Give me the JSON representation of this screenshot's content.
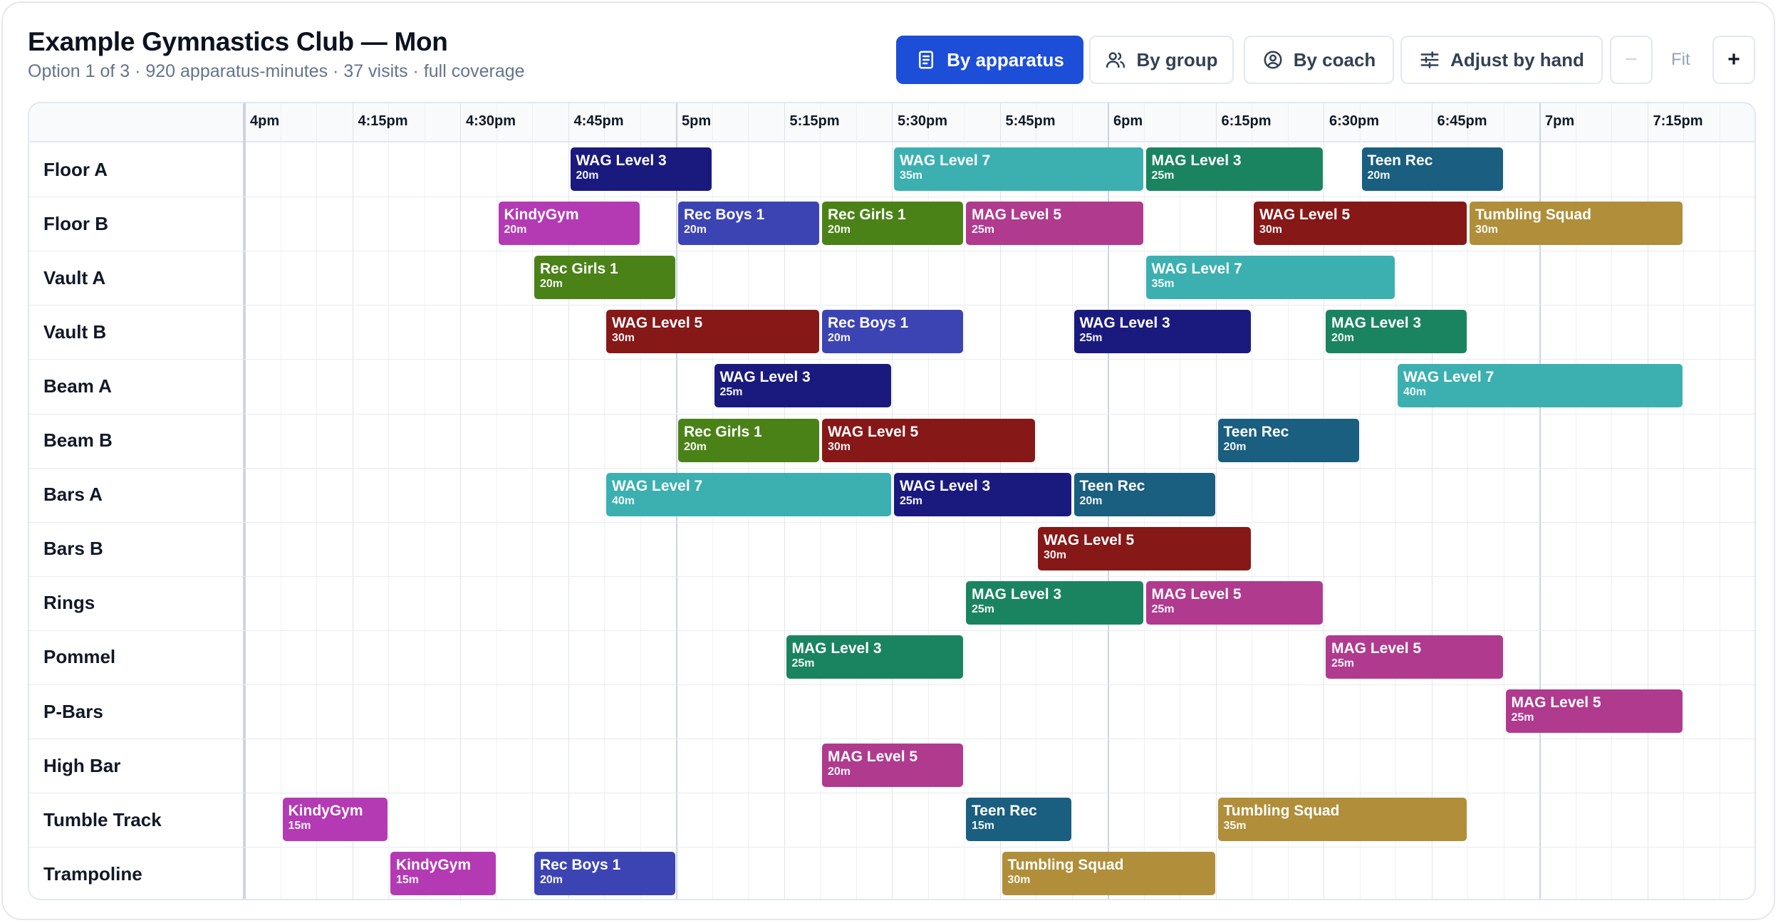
{
  "header": {
    "title": "Example Gymnastics Club — Mon",
    "subtitle": "Option 1 of 3 · 920 apparatus-minutes · 37 visits · full coverage"
  },
  "toolbar": {
    "by_apparatus": "By apparatus",
    "by_group": "By group",
    "by_coach": "By coach",
    "adjust": "Adjust by hand",
    "zoom_out": "−",
    "fit": "Fit",
    "zoom_in": "+"
  },
  "timeline": {
    "start": "4:00pm",
    "end": "7:25pm",
    "ticks": [
      {
        "label": "4pm",
        "min": 0
      },
      {
        "label": "4:15pm",
        "min": 15
      },
      {
        "label": "4:30pm",
        "min": 30
      },
      {
        "label": "4:45pm",
        "min": 45
      },
      {
        "label": "5pm",
        "min": 60
      },
      {
        "label": "5:15pm",
        "min": 75
      },
      {
        "label": "5:30pm",
        "min": 90
      },
      {
        "label": "5:45pm",
        "min": 105
      },
      {
        "label": "6pm",
        "min": 120
      },
      {
        "label": "6:15pm",
        "min": 135
      },
      {
        "label": "6:30pm",
        "min": 150
      },
      {
        "label": "6:45pm",
        "min": 165
      },
      {
        "label": "7pm",
        "min": 180
      },
      {
        "label": "7:15pm",
        "min": 195
      }
    ]
  },
  "groups": {
    "WAG Level 3": "#1a1a7e",
    "WAG Level 5": "#861818",
    "WAG Level 7": "#3cb0b0",
    "MAG Level 3": "#1a8460",
    "MAG Level 5": "#b03a8e",
    "Teen Rec": "#1a5e80",
    "KindyGym": "#b43ab4",
    "Rec Boys 1": "#3c44b4",
    "Rec Girls 1": "#4b8218",
    "Tumbling Squad": "#b08e3a"
  },
  "rows": [
    {
      "name": "Floor A",
      "sessions": [
        {
          "group": "WAG Level 3",
          "duration": "20m",
          "start": 45,
          "len": 20
        },
        {
          "group": "WAG Level 7",
          "duration": "35m",
          "start": 90,
          "len": 35
        },
        {
          "group": "MAG Level 3",
          "duration": "25m",
          "start": 125,
          "len": 25
        },
        {
          "group": "Teen Rec",
          "duration": "20m",
          "start": 155,
          "len": 20
        }
      ]
    },
    {
      "name": "Floor B",
      "sessions": [
        {
          "group": "KindyGym",
          "duration": "20m",
          "start": 35,
          "len": 20
        },
        {
          "group": "Rec Boys 1",
          "duration": "20m",
          "start": 60,
          "len": 20
        },
        {
          "group": "Rec Girls 1",
          "duration": "20m",
          "start": 80,
          "len": 20
        },
        {
          "group": "MAG Level 5",
          "duration": "25m",
          "start": 100,
          "len": 25
        },
        {
          "group": "WAG Level 5",
          "duration": "30m",
          "start": 140,
          "len": 30
        },
        {
          "group": "Tumbling Squad",
          "duration": "30m",
          "start": 170,
          "len": 30
        }
      ]
    },
    {
      "name": "Vault A",
      "sessions": [
        {
          "group": "Rec Girls 1",
          "duration": "20m",
          "start": 40,
          "len": 20
        },
        {
          "group": "WAG Level 7",
          "duration": "35m",
          "start": 125,
          "len": 35
        }
      ]
    },
    {
      "name": "Vault B",
      "sessions": [
        {
          "group": "WAG Level 5",
          "duration": "30m",
          "start": 50,
          "len": 30
        },
        {
          "group": "Rec Boys 1",
          "duration": "20m",
          "start": 80,
          "len": 20
        },
        {
          "group": "WAG Level 3",
          "duration": "25m",
          "start": 115,
          "len": 25
        },
        {
          "group": "MAG Level 3",
          "duration": "20m",
          "start": 150,
          "len": 20
        }
      ]
    },
    {
      "name": "Beam A",
      "sessions": [
        {
          "group": "WAG Level 3",
          "duration": "25m",
          "start": 65,
          "len": 25
        },
        {
          "group": "WAG Level 7",
          "duration": "40m",
          "start": 160,
          "len": 40
        }
      ]
    },
    {
      "name": "Beam B",
      "sessions": [
        {
          "group": "Rec Girls 1",
          "duration": "20m",
          "start": 60,
          "len": 20
        },
        {
          "group": "WAG Level 5",
          "duration": "30m",
          "start": 80,
          "len": 30
        },
        {
          "group": "Teen Rec",
          "duration": "20m",
          "start": 135,
          "len": 20
        }
      ]
    },
    {
      "name": "Bars A",
      "sessions": [
        {
          "group": "WAG Level 7",
          "duration": "40m",
          "start": 50,
          "len": 40
        },
        {
          "group": "WAG Level 3",
          "duration": "25m",
          "start": 90,
          "len": 25
        },
        {
          "group": "Teen Rec",
          "duration": "20m",
          "start": 115,
          "len": 20
        }
      ]
    },
    {
      "name": "Bars B",
      "sessions": [
        {
          "group": "WAG Level 5",
          "duration": "30m",
          "start": 110,
          "len": 30
        }
      ]
    },
    {
      "name": "Rings",
      "sessions": [
        {
          "group": "MAG Level 3",
          "duration": "25m",
          "start": 100,
          "len": 25
        },
        {
          "group": "MAG Level 5",
          "duration": "25m",
          "start": 125,
          "len": 25
        }
      ]
    },
    {
      "name": "Pommel",
      "sessions": [
        {
          "group": "MAG Level 3",
          "duration": "25m",
          "start": 75,
          "len": 25
        },
        {
          "group": "MAG Level 5",
          "duration": "25m",
          "start": 150,
          "len": 25
        }
      ]
    },
    {
      "name": "P-Bars",
      "sessions": [
        {
          "group": "MAG Level 5",
          "duration": "25m",
          "start": 175,
          "len": 25
        }
      ]
    },
    {
      "name": "High Bar",
      "sessions": [
        {
          "group": "MAG Level 5",
          "duration": "20m",
          "start": 80,
          "len": 20
        }
      ]
    },
    {
      "name": "Tumble Track",
      "sessions": [
        {
          "group": "KindyGym",
          "duration": "15m",
          "start": 5,
          "len": 15
        },
        {
          "group": "Teen Rec",
          "duration": "15m",
          "start": 100,
          "len": 15
        },
        {
          "group": "Tumbling Squad",
          "duration": "35m",
          "start": 135,
          "len": 35
        }
      ]
    },
    {
      "name": "Trampoline",
      "sessions": [
        {
          "group": "KindyGym",
          "duration": "15m",
          "start": 20,
          "len": 15
        },
        {
          "group": "Rec Boys 1",
          "duration": "20m",
          "start": 40,
          "len": 20
        },
        {
          "group": "Tumbling Squad",
          "duration": "30m",
          "start": 105,
          "len": 30
        }
      ]
    }
  ]
}
